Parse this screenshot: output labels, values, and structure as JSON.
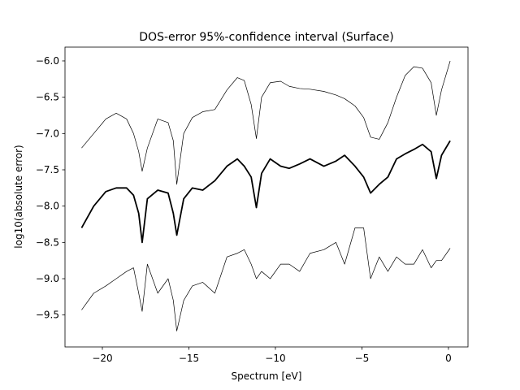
{
  "chart_data": {
    "type": "line",
    "title": "DOS-error 95%-confidence interval (Surface)",
    "x_label": "Spectrum [eV]",
    "y_label": "log10(absolute error)",
    "x": [
      -21.2,
      -20.5,
      -19.8,
      -19.2,
      -18.6,
      -18.2,
      -17.9,
      -17.7,
      -17.4,
      -16.8,
      -16.2,
      -15.9,
      -15.7,
      -15.3,
      -14.8,
      -14.2,
      -13.5,
      -12.8,
      -12.2,
      -11.8,
      -11.4,
      -11.1,
      -10.8,
      -10.3,
      -9.7,
      -9.2,
      -8.6,
      -8.0,
      -7.2,
      -6.5,
      -6.0,
      -5.4,
      -4.9,
      -4.5,
      -4.0,
      -3.5,
      -3.0,
      -2.5,
      -2.0,
      -1.5,
      -1.0,
      -0.7,
      -0.4,
      0.1
    ],
    "series": [
      {
        "color": "#000000",
        "linewidth": 0.7,
        "values": [
          -7.2,
          -7.0,
          -6.8,
          -6.72,
          -6.8,
          -7.0,
          -7.25,
          -7.52,
          -7.2,
          -6.8,
          -6.85,
          -7.1,
          -7.7,
          -7.0,
          -6.78,
          -6.7,
          -6.67,
          -6.4,
          -6.23,
          -6.27,
          -6.6,
          -7.07,
          -6.5,
          -6.3,
          -6.28,
          -6.35,
          -6.38,
          -6.39,
          -6.42,
          -6.47,
          -6.52,
          -6.62,
          -6.78,
          -7.05,
          -7.08,
          -6.85,
          -6.5,
          -6.2,
          -6.08,
          -6.1,
          -6.3,
          -6.75,
          -6.4,
          -6.0
        ]
      },
      {
        "color": "#000000",
        "linewidth": 1.8,
        "values": [
          -8.3,
          -8.0,
          -7.8,
          -7.75,
          -7.75,
          -7.85,
          -8.1,
          -8.5,
          -7.9,
          -7.78,
          -7.82,
          -8.1,
          -8.4,
          -7.9,
          -7.75,
          -7.78,
          -7.65,
          -7.45,
          -7.35,
          -7.45,
          -7.6,
          -8.02,
          -7.55,
          -7.35,
          -7.45,
          -7.48,
          -7.42,
          -7.35,
          -7.45,
          -7.38,
          -7.3,
          -7.45,
          -7.6,
          -7.82,
          -7.7,
          -7.6,
          -7.35,
          -7.28,
          -7.22,
          -7.15,
          -7.25,
          -7.62,
          -7.3,
          -7.1
        ]
      },
      {
        "color": "#000000",
        "linewidth": 0.7,
        "values": [
          -9.43,
          -9.2,
          -9.1,
          -9.0,
          -8.9,
          -8.85,
          -9.2,
          -9.45,
          -8.8,
          -9.2,
          -9.0,
          -9.3,
          -9.72,
          -9.3,
          -9.1,
          -9.05,
          -9.2,
          -8.7,
          -8.65,
          -8.6,
          -8.8,
          -9.0,
          -8.9,
          -9.0,
          -8.8,
          -8.8,
          -8.9,
          -8.65,
          -8.6,
          -8.5,
          -8.8,
          -8.3,
          -8.3,
          -9.0,
          -8.7,
          -8.9,
          -8.7,
          -8.8,
          -8.8,
          -8.6,
          -8.85,
          -8.75,
          -8.75,
          -8.58
        ]
      }
    ],
    "xlim": [
      -22.16,
      1.13
    ],
    "ylim": [
      -9.94,
      -5.81
    ],
    "xticks": [
      {
        "value": -20,
        "label": "−20"
      },
      {
        "value": -15,
        "label": "−15"
      },
      {
        "value": -10,
        "label": "−10"
      },
      {
        "value": -5,
        "label": "−5"
      },
      0
    ],
    "yticks": [
      {
        "value": -9.5,
        "label": "−9.5"
      },
      {
        "value": -9,
        "label": "−9.0"
      },
      {
        "value": -8.5,
        "label": "−8.5"
      },
      {
        "value": -8,
        "label": "−8.0"
      },
      {
        "value": -7.5,
        "label": "−7.5"
      },
      {
        "value": -7,
        "label": "−7.0"
      },
      {
        "value": -6.5,
        "label": "−6.5"
      },
      {
        "value": -6,
        "label": "−6.0"
      }
    ]
  }
}
